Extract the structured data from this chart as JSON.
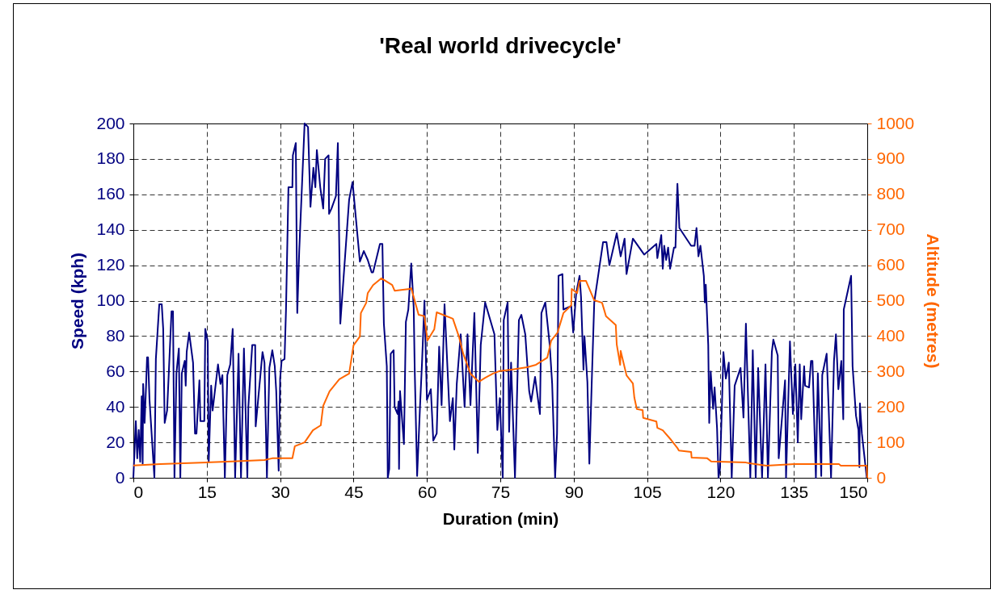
{
  "chart_data": {
    "type": "line",
    "title": "'Real world drivecycle'",
    "xlabel": "Duration (min)",
    "ylabel": "Speed (kph)",
    "y2label": "Altitude (metres)",
    "xlim": [
      0,
      150
    ],
    "xticks": [
      0,
      15,
      30,
      45,
      60,
      75,
      90,
      105,
      120,
      135,
      150
    ],
    "ylim": [
      0,
      200
    ],
    "yticks": [
      0,
      20,
      40,
      60,
      80,
      100,
      120,
      140,
      160,
      180,
      200
    ],
    "y2lim": [
      0,
      1000
    ],
    "y2ticks": [
      0,
      100,
      200,
      300,
      400,
      500,
      600,
      700,
      800,
      900,
      1000
    ],
    "grid": true,
    "line_style": "solid",
    "series": [
      {
        "color": "#000080",
        "x": [
          0,
          0.5,
          0.8,
          1.1,
          1.4,
          1.7,
          1.9,
          2,
          2.3,
          2.6,
          2.8,
          3,
          3.3,
          4.3,
          4.6,
          5.3,
          5.8,
          6.1,
          6.4,
          6.9,
          7.8,
          8.1,
          8.4,
          8.8,
          9.3,
          9.6,
          9.9,
          10.5,
          10.7,
          10.9,
          11.4,
          12.2,
          12.6,
          12.9,
          13.4,
          13.5,
          13.7,
          14.5,
          14.7,
          15.2,
          15.4,
          15.9,
          16.2,
          17.3,
          17.8,
          18.2,
          18.7,
          19.2,
          19.8,
          20.3,
          20.8,
          21.5,
          22,
          22.6,
          23.3,
          23.5,
          24.3,
          24.9,
          25,
          26.1,
          26.4,
          26.8,
          27.3,
          27.8,
          28.4,
          28.9,
          29.2,
          29.7,
          30,
          30.3,
          30.9,
          31.2,
          31.7,
          32.5,
          32.6,
          33.2,
          33.5,
          33.9,
          35,
          35.7,
          36.2,
          36.8,
          37.2,
          37.5,
          38.2,
          38.8,
          39.2,
          39.9,
          40,
          40.5,
          41.4,
          41.8,
          42.3,
          44.1,
          44.8,
          46.3,
          47.1,
          47.9,
          48.7,
          49,
          50.4,
          50.9,
          51.2,
          51.8,
          52,
          52.3,
          52.6,
          53.2,
          53.4,
          54,
          54.2,
          54.3,
          54.5,
          55.3,
          55.7,
          56.2,
          56.8,
          57.3,
          57.5,
          58,
          58.6,
          59,
          59.5,
          60,
          60.8,
          61.3,
          62,
          62.5,
          63,
          63.6,
          64.7,
          65.3,
          65.6,
          66.1,
          66.9,
          67.7,
          68.3,
          68.9,
          69.7,
          70.4,
          71,
          71.9,
          73.8,
          74.4,
          74.9,
          75.5,
          75.7,
          76.5,
          76.8,
          77.2,
          78,
          78.8,
          79.3,
          80.1,
          80.9,
          81.3,
          82.1,
          83.1,
          83.4,
          84.2,
          85.1,
          85.6,
          86.2,
          86.6,
          86.9,
          87.7,
          87.9,
          89.5,
          89.9,
          90.5,
          91.2,
          91.5,
          92,
          92.2,
          92.8,
          93.2,
          93.7,
          94.2,
          96,
          96.7,
          97.3,
          98.8,
          99.6,
          100.4,
          100.8,
          102.1,
          104.4,
          106.9,
          107.1,
          107.9,
          108.2,
          108.5,
          108.9,
          109.3,
          109.7,
          110.5,
          110.8,
          111.2,
          111.6,
          114,
          114.7,
          115.1,
          115.5,
          115.9,
          116.6,
          116.8,
          117,
          117.5,
          117.7,
          118,
          118.5,
          118.8,
          119.3,
          119.6,
          119.9,
          120.3,
          120.6,
          121.1,
          121.7,
          122.3,
          122.9,
          124.1,
          124.7,
          125.2,
          126.1,
          126.6,
          127.2,
          127.7,
          128.5,
          129.2,
          129.7,
          130.5,
          130.8,
          131.7,
          131.9,
          133.2,
          133.4,
          134.2,
          134.8,
          135.3,
          135.8,
          136.2,
          136.5,
          137.1,
          137.3,
          138.1,
          138.5,
          138.8,
          139.5,
          139.9,
          140.6,
          140.8,
          141.7,
          142.1,
          142.6,
          143.2,
          143.6,
          144.1,
          144.7,
          145.1,
          145.2,
          146.7,
          147,
          147.7,
          148.2,
          148.4,
          148.5,
          148.9,
          149.9
        ],
        "values": [
          0,
          32,
          11,
          27,
          9,
          46,
          8,
          53,
          31,
          52,
          68,
          68,
          44,
          0,
          67,
          98,
          98,
          84,
          31,
          38,
          94,
          94,
          0,
          59,
          73,
          0,
          59,
          66,
          52,
          71,
          82,
          65,
          25,
          25,
          50,
          55,
          32,
          32,
          84,
          77,
          9,
          52,
          38,
          64,
          53,
          58,
          0,
          58,
          64,
          84,
          0,
          70,
          0,
          73,
          0,
          40,
          75,
          75,
          29,
          62,
          71,
          65,
          0,
          62,
          72,
          63,
          49,
          4,
          56,
          66,
          67,
          95,
          164,
          164,
          182,
          189,
          93,
          128,
          200,
          198,
          153,
          175,
          164,
          185,
          164,
          152,
          180,
          182,
          149,
          152,
          159,
          189,
          87,
          157,
          167,
          122,
          128,
          123,
          116,
          116,
          132,
          132,
          87,
          63,
          0,
          5,
          70,
          72,
          40,
          36,
          43,
          5,
          49,
          19,
          88,
          95,
          121,
          96,
          62,
          1,
          41,
          65,
          100,
          44,
          50,
          21,
          25,
          74,
          41,
          98,
          32,
          45,
          16,
          53,
          81,
          40,
          81,
          41,
          93,
          14,
          75,
          99,
          81,
          27,
          45,
          0,
          89,
          99,
          26,
          65,
          0,
          89,
          92,
          81,
          49,
          43,
          57,
          36,
          93,
          99,
          75,
          53,
          0,
          25,
          114,
          115,
          95,
          97,
          82,
          104,
          114,
          102,
          61,
          80,
          54,
          8,
          55,
          99,
          133,
          133,
          120,
          138,
          125,
          135,
          115,
          135,
          126,
          132,
          124,
          137,
          118,
          131,
          123,
          130,
          118,
          130,
          130,
          166,
          141,
          131,
          131,
          141,
          125,
          131,
          114,
          99,
          109,
          75,
          31,
          60,
          39,
          51,
          28,
          0,
          5,
          41,
          71,
          56,
          65,
          0,
          52,
          62,
          34,
          87,
          0,
          72,
          0,
          62,
          0,
          64,
          0,
          71,
          78,
          69,
          11,
          55,
          0,
          77,
          36,
          64,
          20,
          64,
          33,
          63,
          52,
          51,
          66,
          66,
          0,
          59,
          1,
          58,
          70,
          40,
          0,
          66,
          81,
          50,
          66,
          33,
          95,
          114,
          63,
          35,
          27,
          6,
          42,
          25,
          0
        ]
      },
      {
        "color": "#ff6600",
        "axis": "y2",
        "x": [
          0,
          5.5,
          20.2,
          26.8,
          28.4,
          32.5,
          33,
          35,
          36.7,
          38.3,
          38.8,
          40.1,
          42.1,
          44.1,
          45,
          46.3,
          46.5,
          47.6,
          47.9,
          49,
          50.7,
          52.9,
          53.4,
          56.5,
          56.8,
          58.3,
          59.5,
          60.1,
          61.5,
          62,
          65.3,
          66.6,
          67.4,
          68.9,
          70.6,
          71.9,
          73.5,
          74.8,
          77.3,
          80.5,
          82.3,
          84.6,
          85.4,
          86.7,
          87.9,
          89.5,
          89.6,
          90.7,
          91.2,
          92.5,
          94.2,
          95.8,
          96.6,
          98.6,
          98.8,
          99.5,
          99.6,
          100.8,
          102.1,
          102.4,
          102.9,
          104.1,
          104.2,
          106.9,
          107.1,
          108.2,
          109.9,
          111.2,
          111.5,
          114,
          114.1,
          117.3,
          118.1,
          125.2,
          125.9,
          129.4,
          135.1,
          144.2,
          144.6,
          149.9,
          150
        ],
        "values": [
          35,
          39,
          46,
          50,
          55,
          55,
          89,
          100,
          134,
          148,
          203,
          244,
          278,
          294,
          374,
          399,
          465,
          494,
          521,
          544,
          563,
          544,
          528,
          533,
          535,
          460,
          456,
          387,
          419,
          467,
          449,
          396,
          351,
          294,
          271,
          282,
          294,
          301,
          305,
          312,
          319,
          339,
          387,
          410,
          465,
          487,
          533,
          521,
          556,
          556,
          501,
          494,
          456,
          431,
          376,
          319,
          358,
          289,
          266,
          226,
          194,
          191,
          169,
          159,
          141,
          134,
          107,
          84,
          77,
          73,
          57,
          55,
          46,
          43,
          41,
          34,
          39,
          39,
          34,
          34,
          0
        ]
      }
    ]
  }
}
